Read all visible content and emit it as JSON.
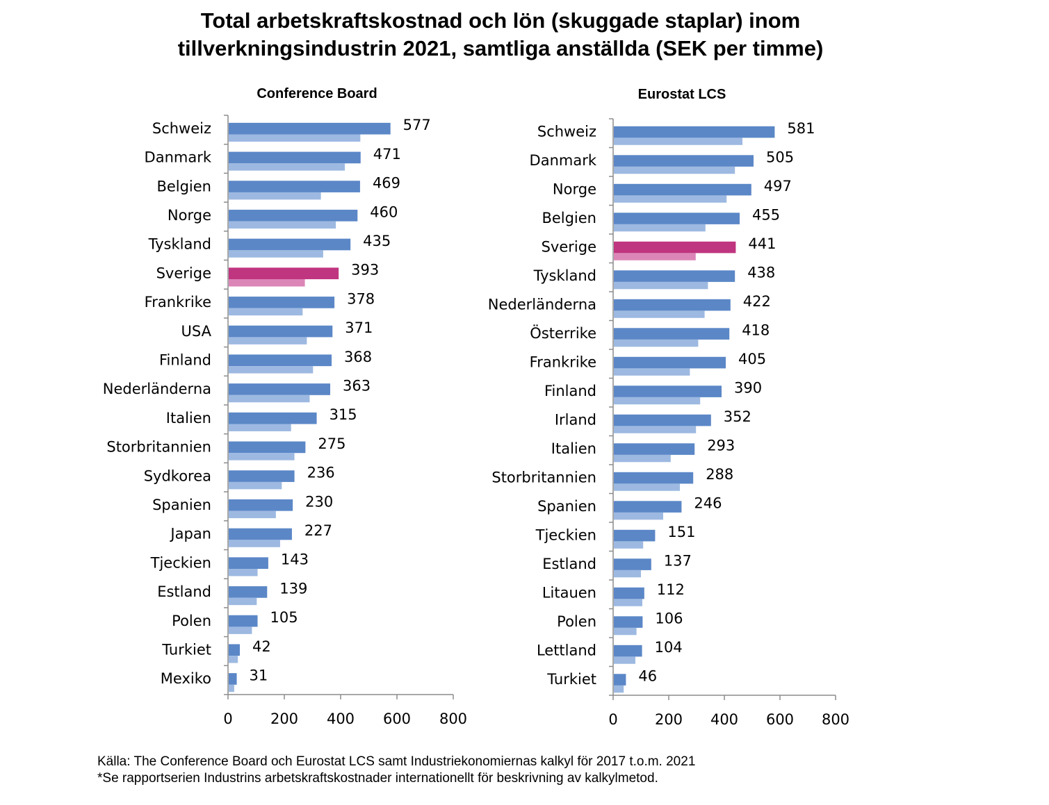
{
  "title": {
    "line1": "Total arbetskraftskostnad och lön (skuggade staplar) inom",
    "line2": "tillverkningsindustrin 2021, samtliga anställda (SEK per timme)"
  },
  "source": {
    "line1": "Källa: The Conference Board och Eurostat LCS samt Industriekonomiernas kalkyl för 2017 t.o.m. 2021",
    "line2": "*Se rapportserien Industrins arbetskraftskostnader internationellt för beskrivning av kalkylmetod."
  },
  "colors": {
    "total": "#5b87c7",
    "wage": "#9db9e1",
    "highlight_total": "#c0357f",
    "highlight_wage": "#dc86b8"
  },
  "chart_data": [
    {
      "type": "bar",
      "orientation": "horizontal",
      "title": "Conference  Board",
      "highlight": "Sverige",
      "xlim": [
        0,
        800
      ],
      "xticks": [
        0,
        200,
        400,
        600,
        800
      ],
      "categories": [
        "Schweiz",
        "Danmark",
        "Belgien",
        "Norge",
        "Tyskland",
        "Sverige",
        "Frankrike",
        "USA",
        "Finland",
        "Nederländerna",
        "Italien",
        "Storbritannien",
        "Sydkorea",
        "Spanien",
        "Japan",
        "Tjeckien",
        "Estland",
        "Polen",
        "Turkiet",
        "Mexiko"
      ],
      "series": [
        {
          "values": [
            577,
            471,
            469,
            460,
            435,
            393,
            378,
            371,
            368,
            363,
            315,
            275,
            236,
            230,
            227,
            143,
            139,
            105,
            42,
            31
          ]
        },
        {
          "values": [
            470,
            415,
            330,
            383,
            338,
            273,
            265,
            280,
            302,
            290,
            224,
            236,
            191,
            170,
            185,
            105,
            102,
            85,
            35,
            22
          ]
        }
      ]
    },
    {
      "type": "bar",
      "orientation": "horizontal",
      "title": "Eurostat  LCS",
      "highlight": "Sverige",
      "xlim": [
        0,
        800
      ],
      "xticks": [
        0,
        200,
        400,
        600,
        800
      ],
      "categories": [
        "Schweiz",
        "Danmark",
        "Norge",
        "Belgien",
        "Sverige",
        "Tyskland",
        "Nederländerna",
        "Österrike",
        "Frankrike",
        "Finland",
        "Irland",
        "Italien",
        "Storbritannien",
        "Spanien",
        "Tjeckien",
        "Estland",
        "Litauen",
        "Polen",
        "Lettland",
        "Turkiet"
      ],
      "series": [
        {
          "values": [
            581,
            505,
            497,
            455,
            441,
            438,
            422,
            418,
            405,
            390,
            352,
            293,
            288,
            246,
            151,
            137,
            112,
            106,
            104,
            46
          ]
        },
        {
          "values": [
            465,
            438,
            408,
            332,
            297,
            341,
            329,
            306,
            276,
            313,
            298,
            207,
            240,
            180,
            108,
            100,
            105,
            84,
            80,
            38
          ]
        }
      ]
    }
  ]
}
